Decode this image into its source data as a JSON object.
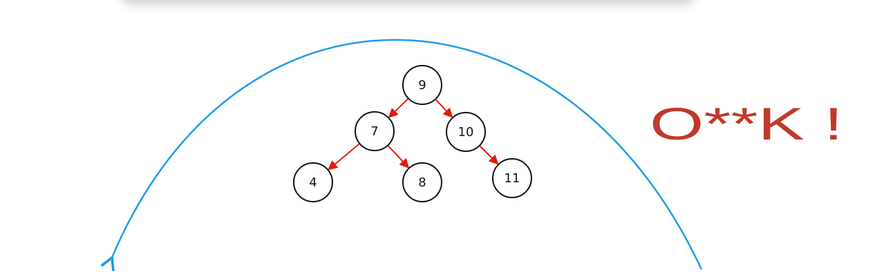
{
  "colors": {
    "edge": "#e2190f",
    "arc": "#1e9be6",
    "annotation": "#c0392b",
    "node_stroke": "#111111"
  },
  "tree": {
    "nodes": [
      {
        "id": "n9",
        "label": "9"
      },
      {
        "id": "n7",
        "label": "7"
      },
      {
        "id": "n10",
        "label": "10"
      },
      {
        "id": "n4",
        "label": "4"
      },
      {
        "id": "n8",
        "label": "8"
      },
      {
        "id": "n11",
        "label": "11"
      }
    ],
    "edges": [
      {
        "from": "n9",
        "to": "n7"
      },
      {
        "from": "n9",
        "to": "n10"
      },
      {
        "from": "n7",
        "to": "n4"
      },
      {
        "from": "n7",
        "to": "n8"
      },
      {
        "from": "n10",
        "to": "n11"
      }
    ]
  },
  "annotation": {
    "text": "O**K !"
  }
}
